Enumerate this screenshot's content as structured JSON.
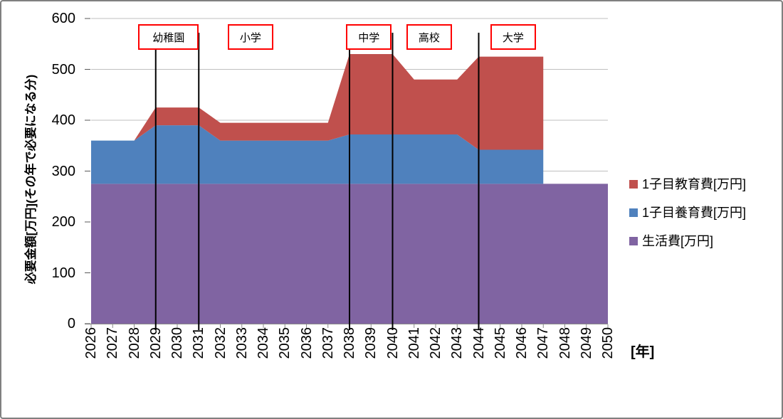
{
  "chart_data": {
    "type": "area",
    "stacked": true,
    "title": "",
    "xlabel": "[年]",
    "ylabel": "必要金額[万円](その年で必要になる分)",
    "ylim": [
      0,
      600
    ],
    "y_ticks": [
      0,
      100,
      200,
      300,
      400,
      500,
      600
    ],
    "gridlines": "horizontal",
    "legend_position": "right",
    "x": [
      2026,
      2027,
      2028,
      2029,
      2030,
      2031,
      2032,
      2033,
      2034,
      2035,
      2036,
      2037,
      2038,
      2039,
      2040,
      2041,
      2042,
      2043,
      2044,
      2045,
      2046,
      2047,
      2048,
      2049,
      2050
    ],
    "series": [
      {
        "key": "living",
        "name": "生活費[万円]",
        "color": "#8064A2",
        "values": [
          275,
          275,
          275,
          275,
          275,
          275,
          275,
          275,
          275,
          275,
          275,
          275,
          275,
          275,
          275,
          275,
          275,
          275,
          275,
          275,
          275,
          275,
          275,
          275,
          275
        ]
      },
      {
        "key": "childcare",
        "name": "1子目養育費[万円]",
        "color": "#4F81BD",
        "values": [
          85,
          85,
          85,
          115,
          115,
          115,
          85,
          85,
          85,
          85,
          85,
          85,
          97,
          97,
          97,
          97,
          97,
          97,
          67,
          67,
          67,
          67,
          null,
          null,
          null
        ]
      },
      {
        "key": "education",
        "name": "1子目教育費[万円]",
        "color": "#C0504D",
        "values": [
          0,
          0,
          0,
          35,
          35,
          35,
          35,
          35,
          35,
          35,
          35,
          35,
          158,
          158,
          158,
          108,
          108,
          108,
          183,
          183,
          183,
          183,
          null,
          null,
          null
        ]
      }
    ],
    "annotations": {
      "vline_years": [
        2029,
        2031,
        2038,
        2040,
        2044
      ],
      "stage_labels": [
        {
          "text": "幼稚園",
          "center_year": 2029.6
        },
        {
          "text": "小学",
          "center_year": 2033.4
        },
        {
          "text": "中学",
          "center_year": 2038.9
        },
        {
          "text": "高校",
          "center_year": 2041.7
        },
        {
          "text": "大学",
          "center_year": 2045.6
        }
      ]
    }
  },
  "styles": {
    "gridline": "#BFBFBF",
    "axis": "#898989",
    "tick": "#595959",
    "vline": "#000000",
    "stage_box_border": "#FF0000",
    "frame": "#808080"
  }
}
